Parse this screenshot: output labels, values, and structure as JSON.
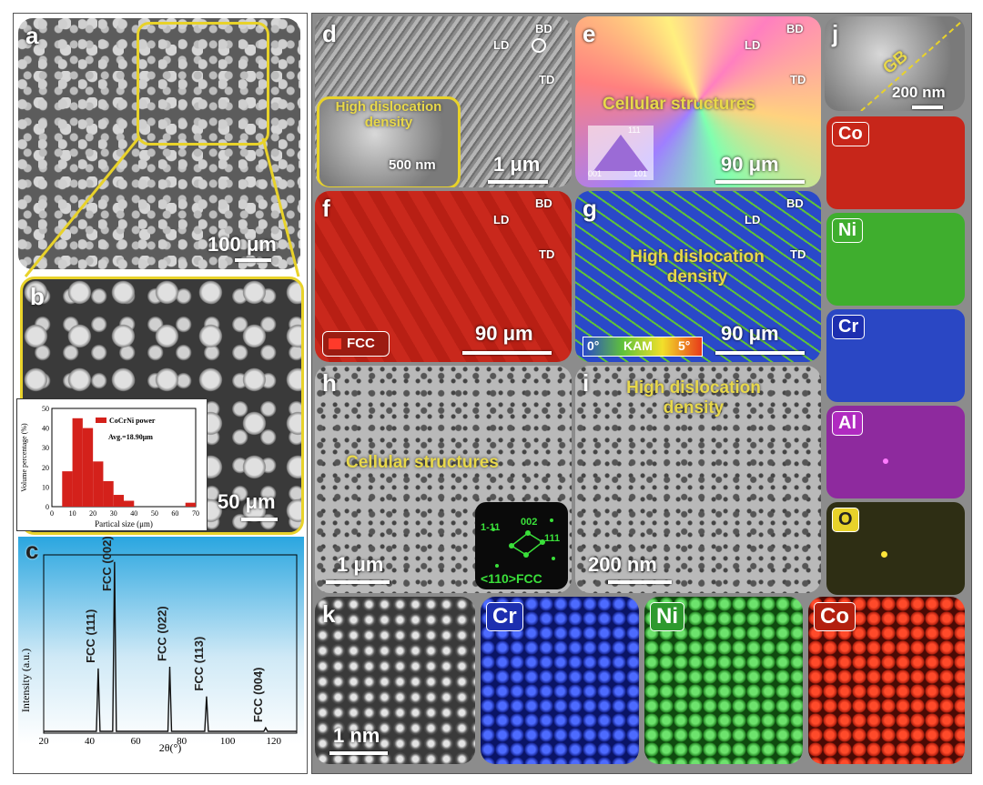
{
  "panels": {
    "a": {
      "label": "a",
      "scale": "100 μm"
    },
    "b": {
      "label": "b",
      "scale": "50 μm"
    },
    "c": {
      "label": "c"
    },
    "d": {
      "label": "d",
      "scale": "1 μm",
      "inset_text": "High dislocation density",
      "inset_scale": "500 nm",
      "axes": {
        "bd": "BD",
        "ld": "LD",
        "td": "TD"
      }
    },
    "e": {
      "label": "e",
      "scale": "90 μm",
      "text": "Cellular structures",
      "axes": {
        "bd": "BD",
        "ld": "LD",
        "td": "TD"
      },
      "ipf": {
        "top": "111",
        "bl": "001",
        "br": "101"
      }
    },
    "f": {
      "label": "f",
      "scale": "90 μm",
      "legend": "FCC",
      "axes": {
        "bd": "BD",
        "ld": "LD",
        "td": "TD"
      }
    },
    "g": {
      "label": "g",
      "scale": "90 μm",
      "text": "High dislocation density",
      "axes": {
        "bd": "BD",
        "ld": "LD",
        "td": "TD"
      },
      "kam": {
        "min": "0°",
        "name": "KAM",
        "max": "5°"
      }
    },
    "h": {
      "label": "h",
      "scale": "1 μm",
      "text": "Cellular structures",
      "saed": {
        "zone": "<110>FCC",
        "spot1": "1-11",
        "spot2": "002",
        "spot3": "111"
      }
    },
    "i": {
      "label": "i",
      "scale": "200 nm",
      "text": "High dislocation density"
    },
    "j": {
      "label": "j",
      "scale": "200 nm",
      "gb": "GB"
    },
    "k": {
      "label": "k",
      "scale": "1 nm"
    }
  },
  "eds": [
    {
      "element": "Co",
      "color": "#c7261a"
    },
    {
      "element": "Ni",
      "color": "#3fae2e"
    },
    {
      "element": "Cr",
      "color": "#2a47c4"
    },
    {
      "element": "Al",
      "color": "#8e2a9e"
    },
    {
      "element": "O",
      "color": "#2e2e14"
    }
  ],
  "atomic_maps": [
    {
      "element": "Cr",
      "tag_color": "#1d2fb0"
    },
    {
      "element": "Ni",
      "tag_color": "#2e9a2e"
    },
    {
      "element": "Co",
      "tag_color": "#b3200f"
    }
  ],
  "chart_data": [
    {
      "type": "bar",
      "legend": "CoCrNi power",
      "annotation": "Avg.=18.90μm",
      "xlabel": "Partical size (μm)",
      "ylabel": "Volume percentage (%)",
      "xlim": [
        0,
        70
      ],
      "ylim": [
        0,
        50
      ],
      "x_ticks": [
        "0",
        "10",
        "20",
        "30",
        "40",
        "50",
        "60",
        "70"
      ],
      "y_ticks": [
        "0",
        "10",
        "20",
        "30",
        "40",
        "50"
      ],
      "bin_width": 5,
      "x": [
        7.5,
        12.5,
        17.5,
        22.5,
        27.5,
        32.5,
        37.5,
        67.5
      ],
      "values": [
        18,
        45,
        40,
        23,
        13,
        6,
        3,
        2
      ],
      "bar_color": "#d4211b"
    },
    {
      "type": "line",
      "xlabel": "2θ(°)",
      "ylabel": "Intensity (a.u.)",
      "xlim": [
        20,
        130
      ],
      "x_ticks": [
        "20",
        "40",
        "60",
        "80",
        "100",
        "120"
      ],
      "peaks": [
        {
          "x": 43.7,
          "height": 0.36,
          "label": "FCC (111)"
        },
        {
          "x": 50.8,
          "height": 0.97,
          "label": "FCC (002)"
        },
        {
          "x": 74.8,
          "height": 0.37,
          "label": "FCC (022)"
        },
        {
          "x": 90.8,
          "height": 0.2,
          "label": "FCC (113)"
        },
        {
          "x": 116.5,
          "height": 0.02,
          "label": "FCC (004)"
        }
      ]
    }
  ]
}
